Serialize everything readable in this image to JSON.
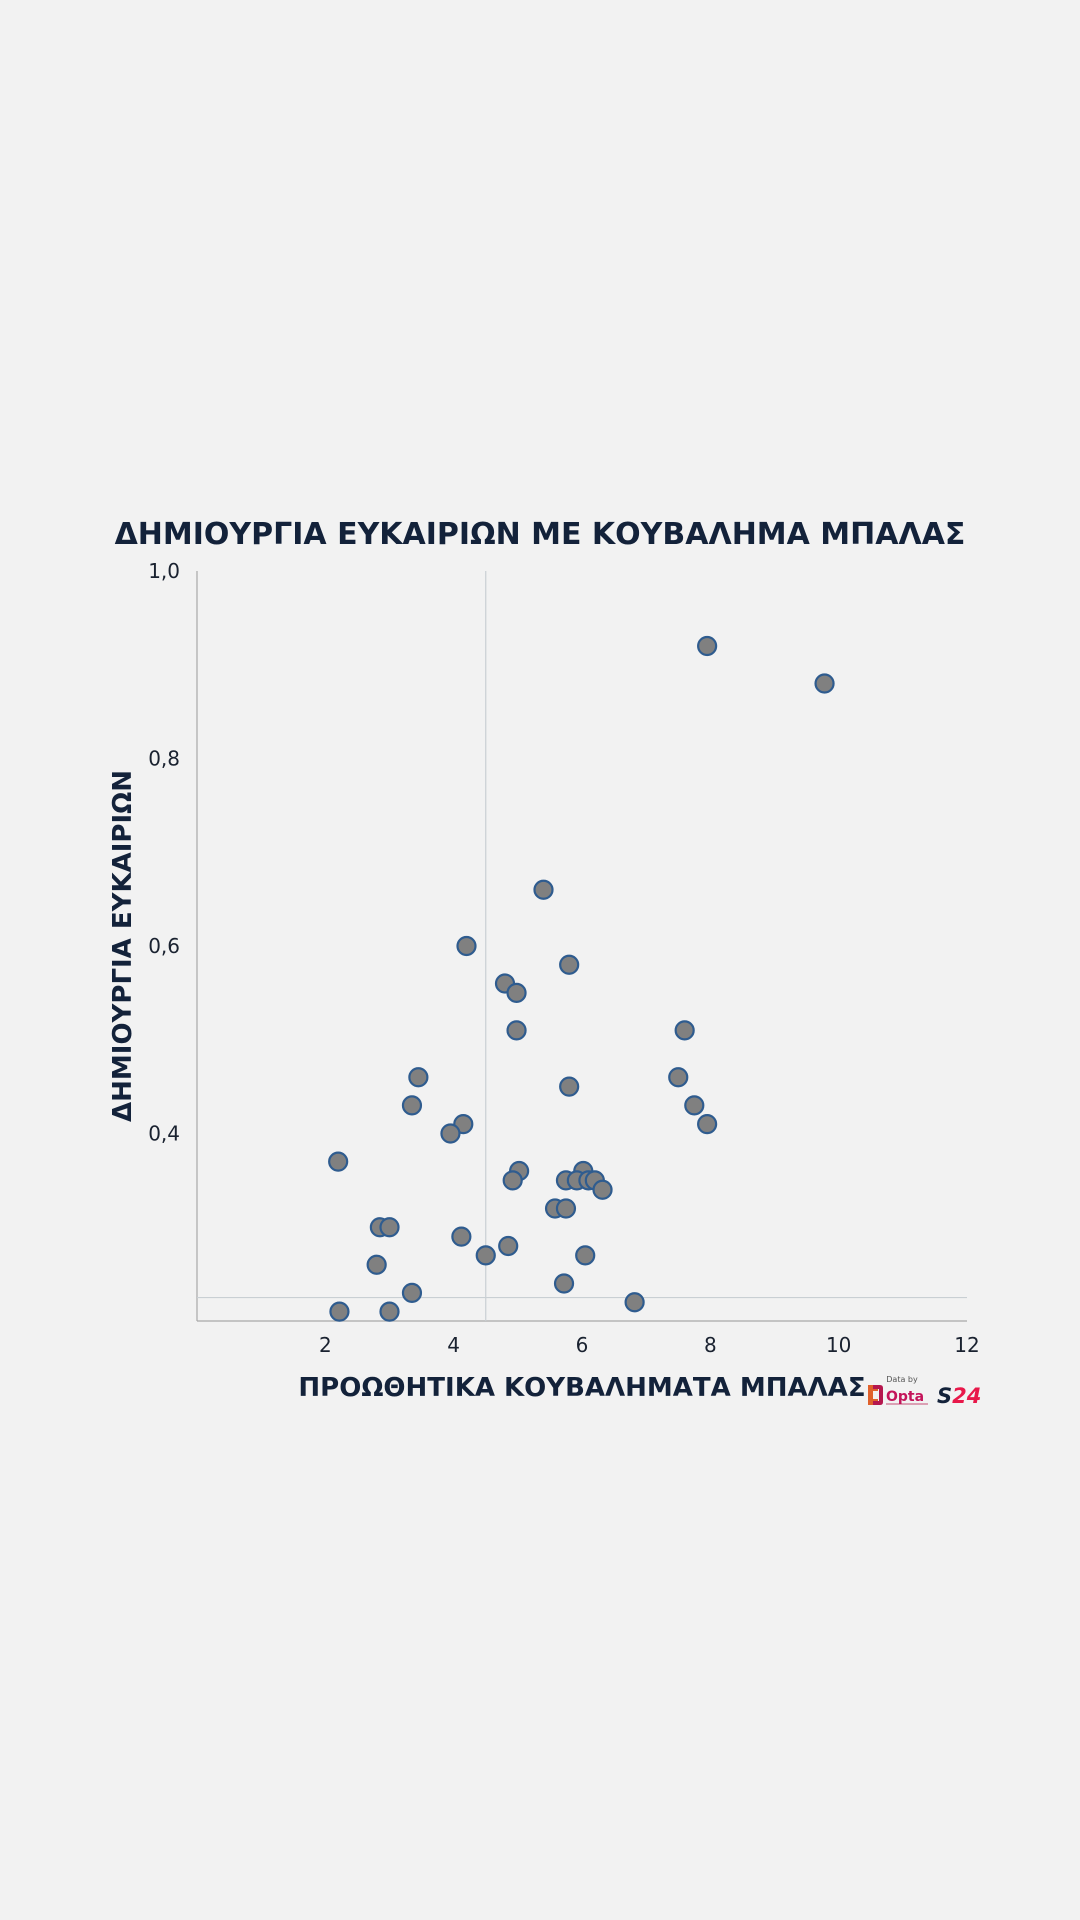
{
  "chart_data": {
    "type": "scatter",
    "title": "ΔΗΜΙΟΥΡΓΙΑ ΕΥΚΑΙΡΙΩΝ ΜΕ ΚΟΥΒΑΛΗΜΑ ΜΠΑΛΑΣ",
    "xlabel": "ΠΡΟΩΘΗΤΙΚΑ ΚΟΥΒΑΛΗΜΑΤΑ ΜΠΑΛΑΣ",
    "ylabel": "ΔΗΜΙΟΥΡΓΙΑ ΕΥΚΑΙΡΙΩΝ",
    "xlim": [
      0,
      12
    ],
    "ylim": [
      0.2,
      1.0
    ],
    "x_ticks": [
      {
        "value": 2,
        "label": "2"
      },
      {
        "value": 4,
        "label": "4"
      },
      {
        "value": 6,
        "label": "6"
      },
      {
        "value": 8,
        "label": "8"
      },
      {
        "value": 10,
        "label": "10"
      },
      {
        "value": 12,
        "label": "12"
      }
    ],
    "y_ticks": [
      {
        "value": 0.4,
        "label": "0,4"
      },
      {
        "value": 0.6,
        "label": "0,6"
      },
      {
        "value": 0.8,
        "label": "0,8"
      },
      {
        "value": 1.0,
        "label": "1,0"
      }
    ],
    "reference_lines": {
      "x": 4.5,
      "y": 0.225
    },
    "grid": false,
    "point_fill": "#808080",
    "point_stroke": "#2f5c8f",
    "points": [
      {
        "x": 7.95,
        "y": 0.92
      },
      {
        "x": 9.78,
        "y": 0.88
      },
      {
        "x": 5.4,
        "y": 0.66
      },
      {
        "x": 4.2,
        "y": 0.6
      },
      {
        "x": 5.8,
        "y": 0.58
      },
      {
        "x": 4.8,
        "y": 0.56
      },
      {
        "x": 4.98,
        "y": 0.55
      },
      {
        "x": 4.98,
        "y": 0.51
      },
      {
        "x": 7.6,
        "y": 0.51
      },
      {
        "x": 3.45,
        "y": 0.46
      },
      {
        "x": 5.8,
        "y": 0.45
      },
      {
        "x": 7.5,
        "y": 0.46
      },
      {
        "x": 3.35,
        "y": 0.43
      },
      {
        "x": 7.75,
        "y": 0.43
      },
      {
        "x": 4.15,
        "y": 0.41
      },
      {
        "x": 7.95,
        "y": 0.41
      },
      {
        "x": 3.95,
        "y": 0.4
      },
      {
        "x": 2.2,
        "y": 0.37
      },
      {
        "x": 5.02,
        "y": 0.36
      },
      {
        "x": 6.02,
        "y": 0.36
      },
      {
        "x": 4.92,
        "y": 0.35
      },
      {
        "x": 5.75,
        "y": 0.35
      },
      {
        "x": 5.92,
        "y": 0.35
      },
      {
        "x": 6.1,
        "y": 0.35
      },
      {
        "x": 6.2,
        "y": 0.35
      },
      {
        "x": 6.32,
        "y": 0.34
      },
      {
        "x": 5.58,
        "y": 0.32
      },
      {
        "x": 5.75,
        "y": 0.32
      },
      {
        "x": 2.85,
        "y": 0.3
      },
      {
        "x": 3.0,
        "y": 0.3
      },
      {
        "x": 4.12,
        "y": 0.29
      },
      {
        "x": 4.85,
        "y": 0.28
      },
      {
        "x": 4.5,
        "y": 0.27
      },
      {
        "x": 6.05,
        "y": 0.27
      },
      {
        "x": 2.8,
        "y": 0.26
      },
      {
        "x": 5.72,
        "y": 0.24
      },
      {
        "x": 3.35,
        "y": 0.23
      },
      {
        "x": 6.82,
        "y": 0.22
      },
      {
        "x": 2.22,
        "y": 0.21
      },
      {
        "x": 3.0,
        "y": 0.21
      }
    ]
  },
  "branding": {
    "data_by": "Data by",
    "opta_label": "Opta",
    "opta_color": "#c4145a",
    "s24_label": "S24",
    "s24_color": "#e8184a",
    "s24_s_color": "#13223a"
  }
}
